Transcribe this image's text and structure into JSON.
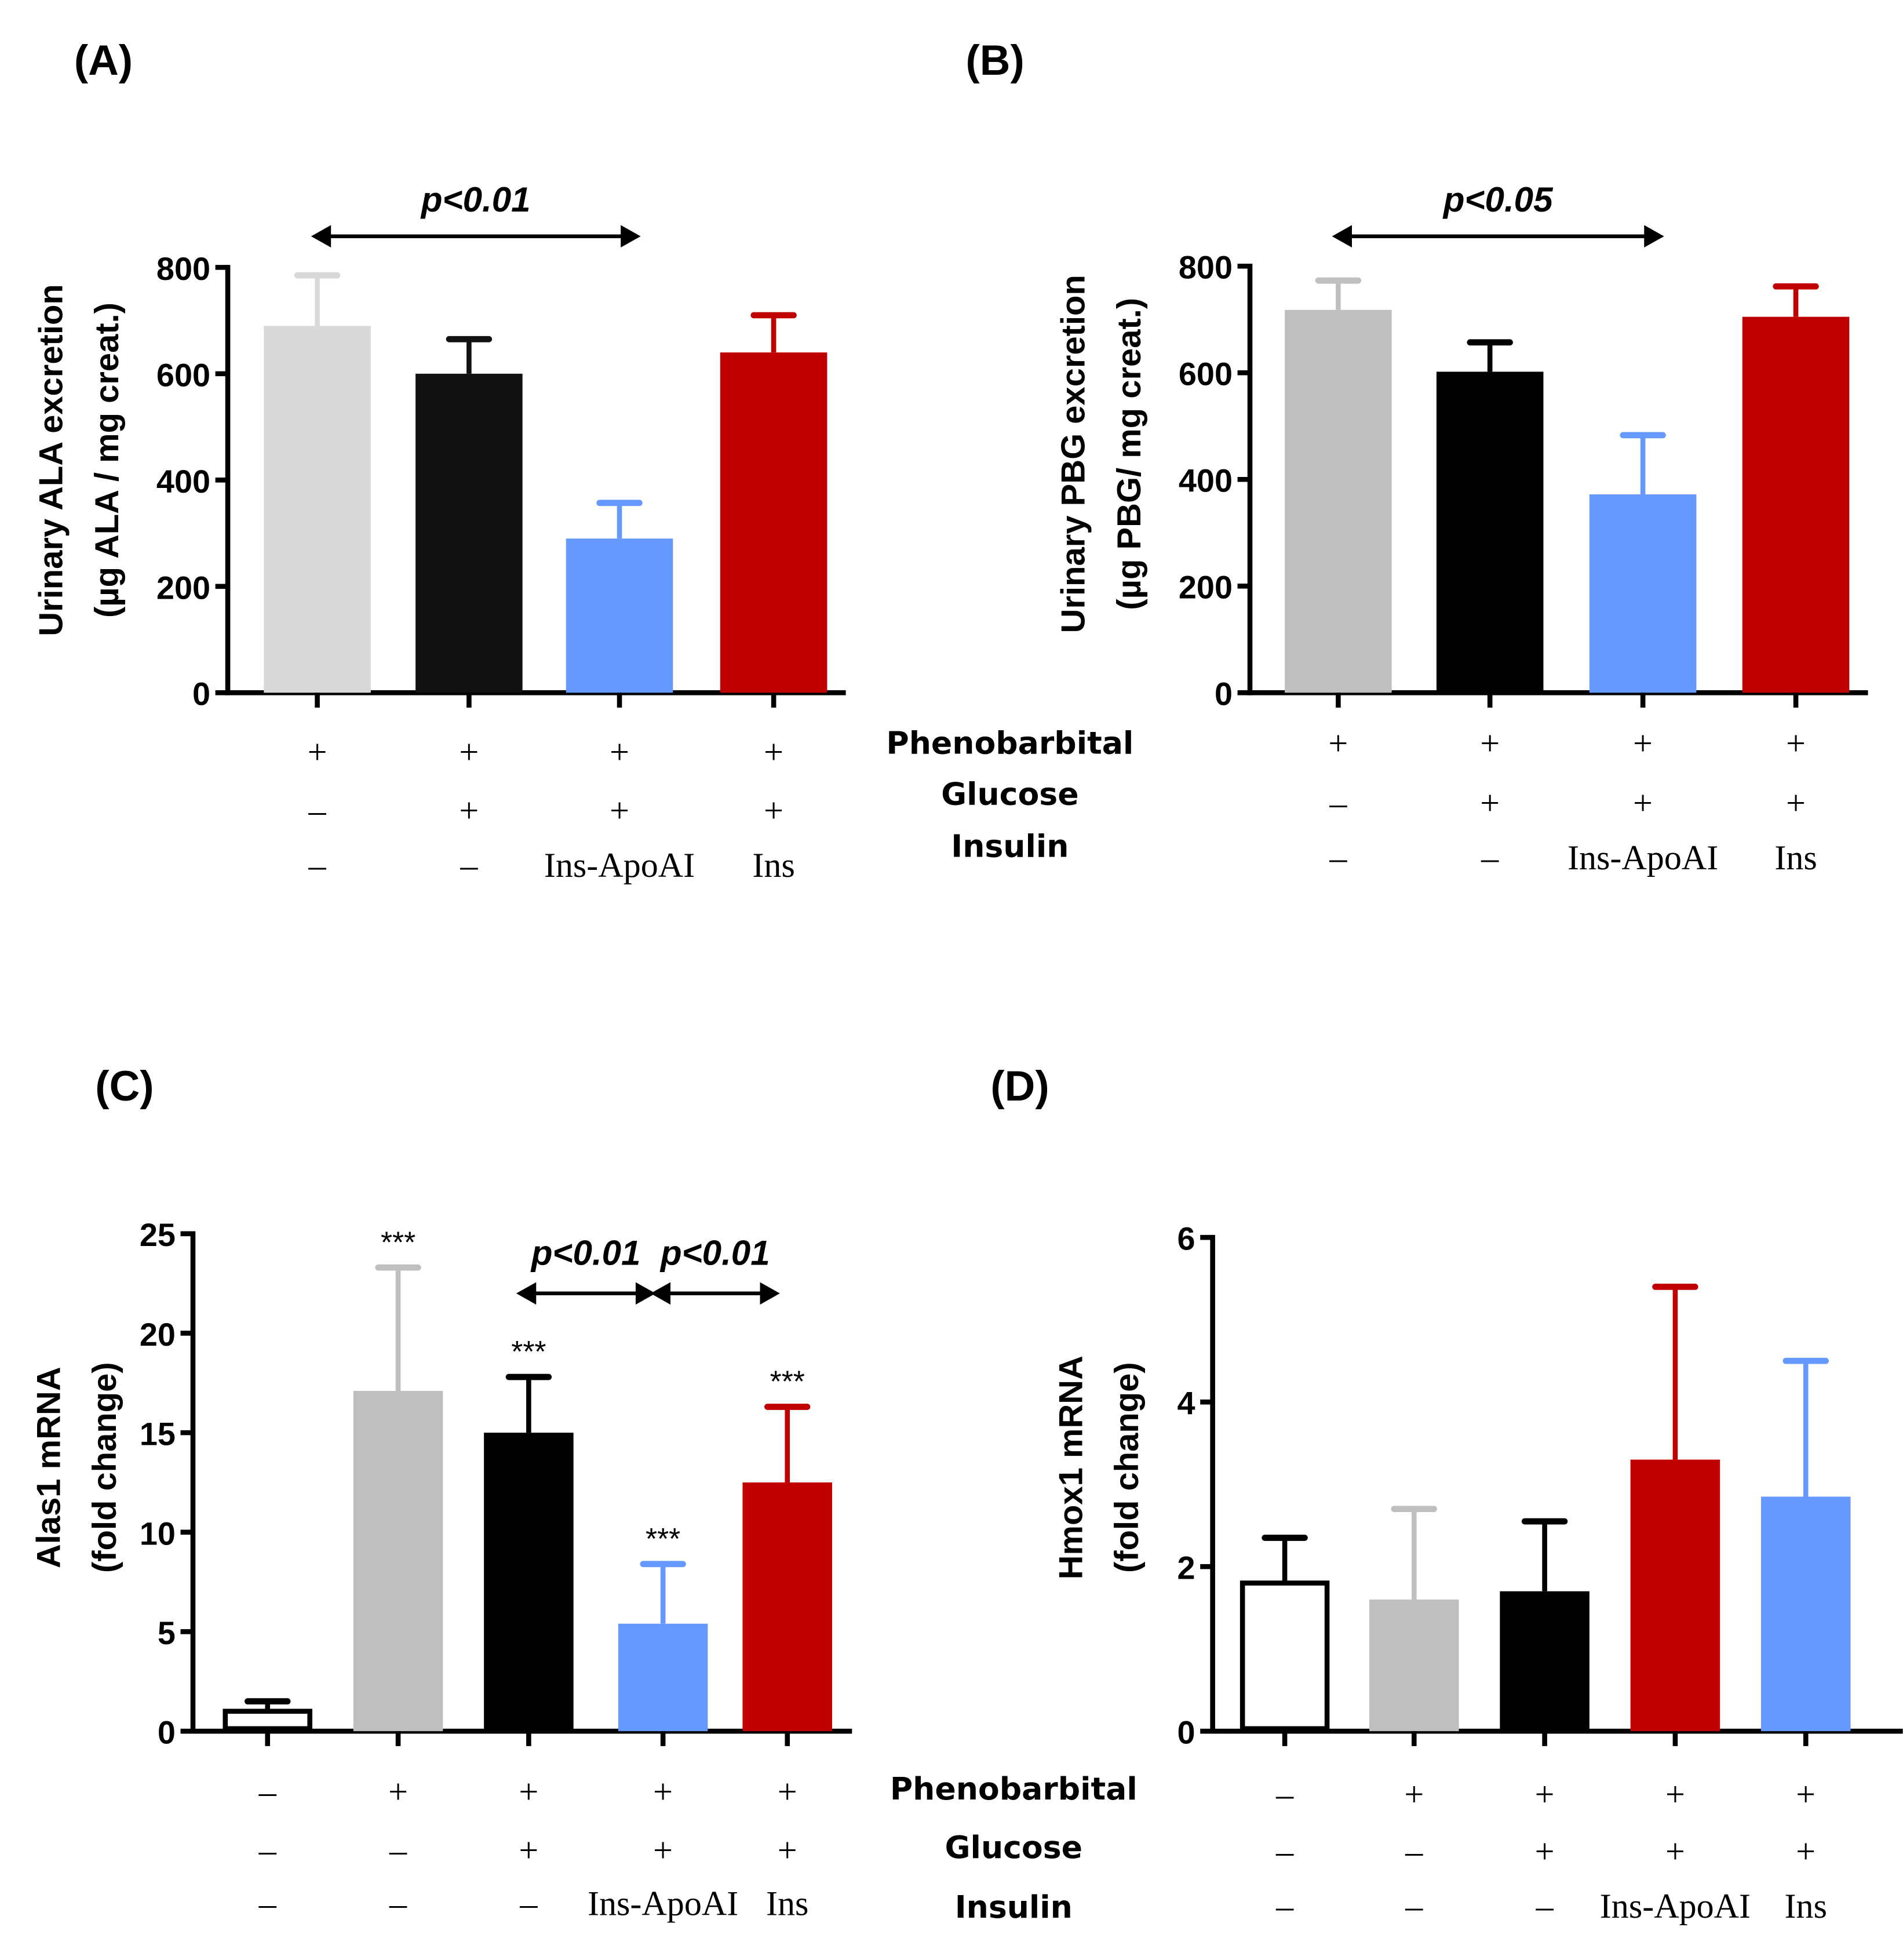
{
  "condition_rows": [
    "Phenobarbital",
    "Glucose",
    "Insulin"
  ],
  "chart_data": [
    {
      "panel": "(A)",
      "type": "bar",
      "ylabel": [
        "Urinary ALA excretion",
        "(µg ALA / mg creat.)"
      ],
      "ylim": [
        0,
        800
      ],
      "yticks": [
        0,
        200,
        400,
        600,
        800
      ],
      "values": [
        690,
        600,
        290,
        640
      ],
      "errors": [
        95,
        65,
        67,
        70
      ],
      "colors": [
        "#d9d9d9",
        "#111111",
        "#6699ff",
        "#c00000"
      ],
      "conditions": [
        [
          "+",
          "–",
          "–"
        ],
        [
          "+",
          "+",
          "–"
        ],
        [
          "+",
          "+",
          "Ins-ApoAI"
        ],
        [
          "+",
          "+",
          "Ins"
        ]
      ],
      "annotations": [
        {
          "text": "p<0.01",
          "from": 0,
          "to": 2
        }
      ],
      "stars": []
    },
    {
      "panel": "(B)",
      "type": "bar",
      "ylabel": [
        "Urinary PBG excretion",
        "(µg PBG/ mg creat.)"
      ],
      "ylim": [
        0,
        800
      ],
      "yticks": [
        0,
        200,
        400,
        600,
        800
      ],
      "values": [
        718,
        602,
        372,
        705
      ],
      "errors": [
        55,
        55,
        111,
        57
      ],
      "colors": [
        "#bfbfbf",
        "#000000",
        "#6699ff",
        "#c00000"
      ],
      "conditions": [
        [
          "+",
          "–",
          "–"
        ],
        [
          "+",
          "+",
          "–"
        ],
        [
          "+",
          "+",
          "Ins-ApoAI"
        ],
        [
          "+",
          "+",
          "Ins"
        ]
      ],
      "annotations": [
        {
          "text": "p<0.05",
          "from": 0,
          "to": 2
        }
      ],
      "stars": []
    },
    {
      "panel": "(C)",
      "type": "bar",
      "ylabel": [
        "Alas1 mRNA",
        "(fold  change)"
      ],
      "ylim": [
        0,
        25
      ],
      "yticks": [
        0,
        5,
        10,
        15,
        20,
        25
      ],
      "values": [
        1.0,
        17.1,
        15.0,
        5.4,
        12.5
      ],
      "errors": [
        0.5,
        6.2,
        2.8,
        3.0,
        3.8
      ],
      "colors": [
        "#ffffff",
        "#bfbfbf",
        "#000000",
        "#6699ff",
        "#c00000"
      ],
      "conditions": [
        [
          "–",
          "–",
          "–"
        ],
        [
          "+",
          "–",
          "–"
        ],
        [
          "+",
          "+",
          "–"
        ],
        [
          "+",
          "+",
          "Ins-ApoAI"
        ],
        [
          "+",
          "+",
          "Ins"
        ]
      ],
      "annotations": [
        {
          "text": "p<0.01",
          "from": 2,
          "to": 3
        },
        {
          "text": "p<0.01",
          "from": 3,
          "to": 4
        }
      ],
      "stars": [
        "",
        "***",
        "***",
        "***",
        "***"
      ]
    },
    {
      "panel": "(D)",
      "type": "bar",
      "ylabel": [
        "Hmox1 mRNA",
        "(fold change)"
      ],
      "ylim": [
        0,
        6
      ],
      "yticks": [
        0,
        2,
        4,
        6
      ],
      "values": [
        1.8,
        1.6,
        1.7,
        3.3,
        2.85
      ],
      "errors": [
        0.55,
        1.1,
        0.85,
        2.1,
        1.65
      ],
      "colors": [
        "#ffffff",
        "#bfbfbf",
        "#000000",
        "#c00000",
        "#6699ff"
      ],
      "conditions": [
        [
          "–",
          "–",
          "–"
        ],
        [
          "+",
          "–",
          "–"
        ],
        [
          "+",
          "+",
          "–"
        ],
        [
          "+",
          "+",
          "Ins-ApoAI"
        ],
        [
          "+",
          "+",
          "Ins"
        ]
      ],
      "annotations": [],
      "stars": []
    }
  ]
}
